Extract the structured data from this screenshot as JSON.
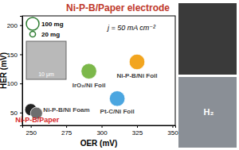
{
  "chart_data": {
    "type": "scatter",
    "title": "Ni-P-B/Paper electrode",
    "x_label": "OER (mV)",
    "y_label": "HER (mV)",
    "xlim": [
      244,
      352
    ],
    "xticks": [
      250,
      275,
      300,
      325,
      350
    ],
    "ylim": [
      28,
      216
    ],
    "yticks": [
      50,
      100,
      150,
      200
    ],
    "grid": false,
    "series": [
      {
        "name": "Ni-P-B/Paper",
        "color": "#222222",
        "x": [
          250
        ],
        "values": [
          55
        ],
        "sizes": [
          90
        ]
      },
      {
        "name": "Ni-P-B/Ni Foam",
        "color": "#6e6e6e",
        "x": [
          254
        ],
        "values": [
          49
        ],
        "sizes": [
          90
        ]
      },
      {
        "name": "IrO₂/Ni Foil",
        "color": "#7cb84a",
        "x": [
          291
        ],
        "values": [
          121
        ],
        "sizes": [
          150
        ]
      },
      {
        "name": "Pt-C/Ni Foil",
        "color": "#4ba6e0",
        "x": [
          311
        ],
        "values": [
          74
        ],
        "sizes": [
          150
        ]
      },
      {
        "name": "Ni-P-B/Ni Foil",
        "color": "#f2a51f",
        "x": [
          325
        ],
        "values": [
          137
        ],
        "sizes": [
          150
        ]
      }
    ],
    "size_legend": {
      "values": [
        100,
        20
      ],
      "labels": [
        "100 mg",
        "20 mg"
      ]
    },
    "annotations": [
      "j = 50 mA cm⁻²",
      "10 μm",
      "H₂"
    ]
  }
}
